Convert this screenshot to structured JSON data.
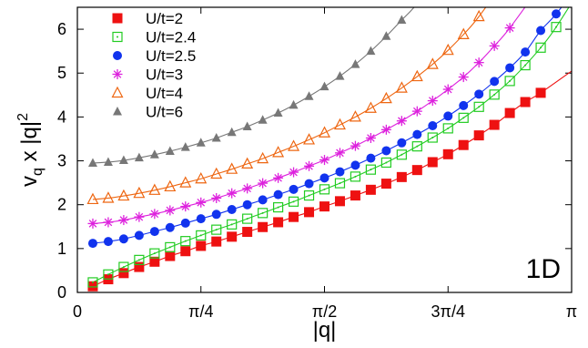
{
  "chart_data": {
    "type": "scatter",
    "xlabel": "|q|",
    "ylabel": "v_q x |q|^2",
    "panel_label": "1D",
    "xlim": [
      0,
      3.14159
    ],
    "ylim": [
      0,
      6.5
    ],
    "xticks": [
      {
        "value": 0,
        "label": "0"
      },
      {
        "value": 0.7854,
        "label": "π/4"
      },
      {
        "value": 1.5708,
        "label": "π/2"
      },
      {
        "value": 2.3562,
        "label": "3π/4"
      },
      {
        "value": 3.14159,
        "label": "π"
      }
    ],
    "yticks": [
      0,
      1,
      2,
      3,
      4,
      5,
      6
    ],
    "legend_position": "top-left",
    "series": [
      {
        "name": "U/t=2",
        "color": "#ee1111",
        "marker": "filled-square",
        "x": [
          0.0982,
          0.1963,
          0.2945,
          0.3927,
          0.4909,
          0.589,
          0.6872,
          0.7854,
          0.8836,
          0.9817,
          1.0799,
          1.1781,
          1.2763,
          1.3744,
          1.4726,
          1.5708,
          1.669,
          1.7671,
          1.8653,
          1.9635,
          2.0617,
          2.1598,
          2.258,
          2.3562,
          2.4544,
          2.5525,
          2.6507,
          2.7489,
          2.8471,
          2.9452
        ],
        "y": [
          0.14,
          0.3,
          0.44,
          0.58,
          0.7,
          0.83,
          0.94,
          1.06,
          1.16,
          1.27,
          1.38,
          1.49,
          1.6,
          1.72,
          1.83,
          1.96,
          2.08,
          2.21,
          2.34,
          2.48,
          2.63,
          2.79,
          2.97,
          3.15,
          3.36,
          3.58,
          3.82,
          4.09,
          4.34,
          4.55
        ]
      },
      {
        "name": "U/t=2.4",
        "color": "#22cc22",
        "marker": "dotted-square",
        "x": [
          0.0982,
          0.1963,
          0.2945,
          0.3927,
          0.4909,
          0.589,
          0.6872,
          0.7854,
          0.8836,
          0.9817,
          1.0799,
          1.1781,
          1.2763,
          1.3744,
          1.4726,
          1.5708,
          1.669,
          1.7671,
          1.8653,
          1.9635,
          2.0617,
          2.1598,
          2.258,
          2.3562,
          2.4544,
          2.5525,
          2.6507,
          2.7489,
          2.8471,
          2.9452,
          3.0434
        ],
        "y": [
          0.23,
          0.41,
          0.58,
          0.74,
          0.89,
          1.03,
          1.17,
          1.3,
          1.43,
          1.55,
          1.68,
          1.81,
          1.94,
          2.07,
          2.21,
          2.35,
          2.49,
          2.64,
          2.8,
          2.96,
          3.14,
          3.33,
          3.53,
          3.74,
          3.98,
          4.23,
          4.51,
          4.82,
          5.18,
          5.58,
          6.05
        ]
      },
      {
        "name": "U/t=2.5",
        "color": "#1133ee",
        "marker": "filled-circle",
        "x": [
          0.0982,
          0.1963,
          0.2945,
          0.3927,
          0.4909,
          0.589,
          0.6872,
          0.7854,
          0.8836,
          0.9817,
          1.0799,
          1.1781,
          1.2763,
          1.3744,
          1.4726,
          1.5708,
          1.669,
          1.7671,
          1.8653,
          1.9635,
          2.0617,
          2.1598,
          2.258,
          2.3562,
          2.4544,
          2.5525,
          2.6507,
          2.7489,
          2.8471,
          2.9452,
          3.0434
        ],
        "y": [
          1.12,
          1.16,
          1.22,
          1.3,
          1.39,
          1.48,
          1.58,
          1.68,
          1.78,
          1.89,
          2.0,
          2.11,
          2.23,
          2.35,
          2.48,
          2.61,
          2.75,
          2.9,
          3.06,
          3.23,
          3.41,
          3.6,
          3.8,
          4.02,
          4.26,
          4.52,
          4.81,
          5.12,
          5.48,
          5.97,
          6.35
        ]
      },
      {
        "name": "U/t=3",
        "color": "#dd22dd",
        "marker": "asterisk",
        "x": [
          0.0982,
          0.1963,
          0.2945,
          0.3927,
          0.4909,
          0.589,
          0.6872,
          0.7854,
          0.8836,
          0.9817,
          1.0799,
          1.1781,
          1.2763,
          1.3744,
          1.4726,
          1.5708,
          1.669,
          1.7671,
          1.8653,
          1.9635,
          2.0617,
          2.1598,
          2.258,
          2.3562,
          2.4544,
          2.5525,
          2.6507,
          2.7489
        ],
        "y": [
          1.57,
          1.6,
          1.65,
          1.72,
          1.79,
          1.87,
          1.96,
          2.05,
          2.15,
          2.26,
          2.37,
          2.49,
          2.61,
          2.74,
          2.88,
          3.02,
          3.18,
          3.34,
          3.52,
          3.71,
          3.91,
          4.13,
          4.37,
          4.63,
          4.91,
          5.24,
          5.62,
          6.03
        ]
      },
      {
        "name": "U/t=4",
        "color": "#ee6611",
        "marker": "open-triangle",
        "x": [
          0.0982,
          0.1963,
          0.2945,
          0.3927,
          0.4909,
          0.589,
          0.6872,
          0.7854,
          0.8836,
          0.9817,
          1.0799,
          1.1781,
          1.2763,
          1.3744,
          1.4726,
          1.5708,
          1.669,
          1.7671,
          1.8653,
          1.9635,
          2.0617,
          2.1598,
          2.258,
          2.3562,
          2.4544,
          2.5525
        ],
        "y": [
          2.12,
          2.15,
          2.2,
          2.26,
          2.33,
          2.41,
          2.5,
          2.59,
          2.7,
          2.81,
          2.93,
          3.05,
          3.19,
          3.33,
          3.48,
          3.64,
          3.82,
          4.0,
          4.2,
          4.42,
          4.66,
          4.92,
          5.2,
          5.52,
          5.88,
          6.29
        ]
      },
      {
        "name": "U/t=6",
        "color": "#777777",
        "marker": "filled-triangle",
        "x": [
          0.0982,
          0.1963,
          0.2945,
          0.3927,
          0.4909,
          0.589,
          0.6872,
          0.7854,
          0.8836,
          0.9817,
          1.0799,
          1.1781,
          1.2763,
          1.3744,
          1.4726,
          1.5708,
          1.669,
          1.7671,
          1.8653,
          1.9635,
          2.0617,
          2.1598
        ],
        "y": [
          2.95,
          2.97,
          3.01,
          3.07,
          3.14,
          3.22,
          3.31,
          3.41,
          3.52,
          3.65,
          3.78,
          3.93,
          4.09,
          4.27,
          4.47,
          4.69,
          4.93,
          5.2,
          5.5,
          5.84,
          6.21,
          6.58
        ]
      }
    ]
  }
}
